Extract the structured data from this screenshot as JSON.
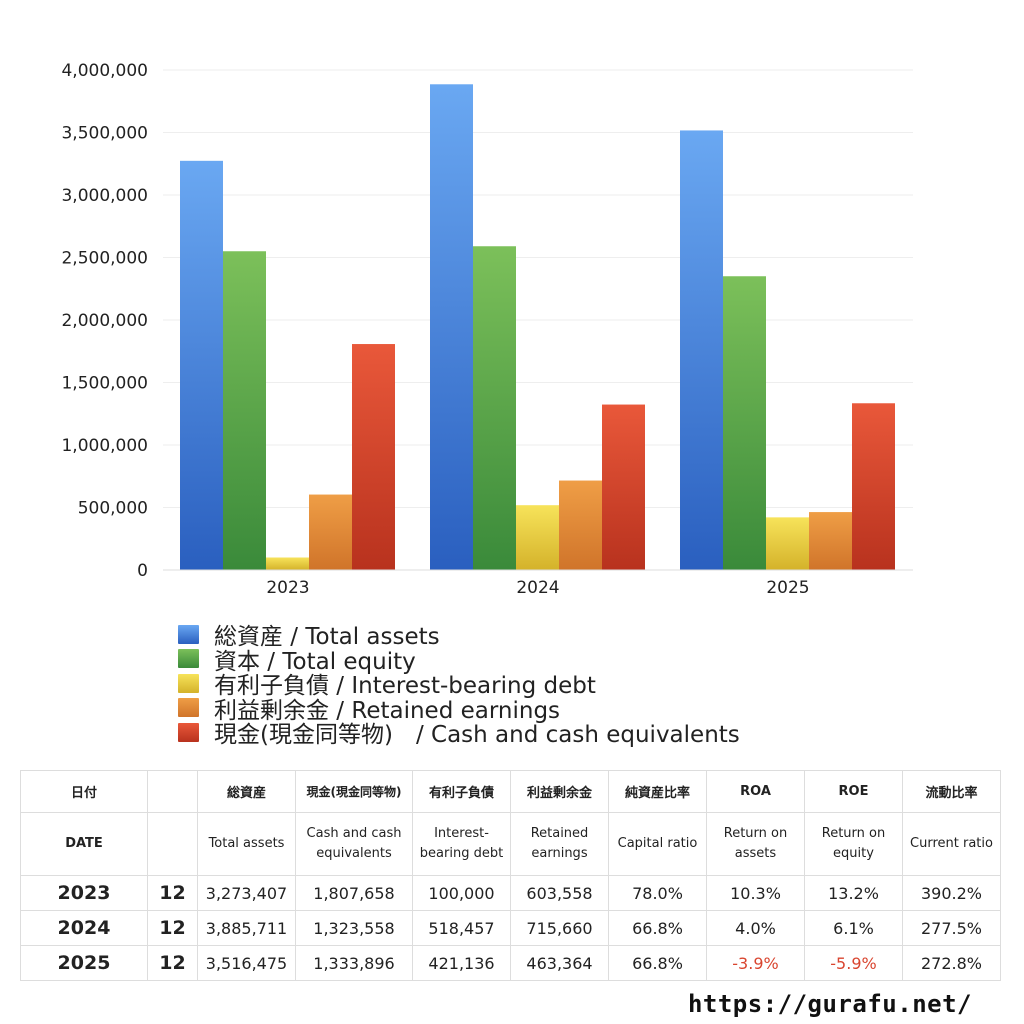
{
  "chart_data": {
    "type": "bar",
    "categories": [
      "2023",
      "2024",
      "2025"
    ],
    "ylim": [
      0,
      4000000
    ],
    "yticks": [
      0,
      500000,
      1000000,
      1500000,
      2000000,
      2500000,
      3000000,
      3500000,
      4000000
    ],
    "ytick_labels": [
      "0",
      "500,000",
      "1,000,000",
      "1,500,000",
      "2,000,000",
      "2,500,000",
      "3,000,000",
      "3,500,000",
      "4,000,000"
    ],
    "grid": true,
    "legend_position": "bottom",
    "series": [
      {
        "name": "総資産 / Total assets",
        "values": [
          3273407,
          3885711,
          3516475
        ],
        "color": "#4a8ee6",
        "color_light": "#6aa8f2",
        "color_dark": "#2a5fbf"
      },
      {
        "name": "資本 / Total equity",
        "values": [
          2550000,
          2590000,
          2350000
        ],
        "color": "#5aa84a",
        "color_light": "#7cc05a",
        "color_dark": "#3a8a3a"
      },
      {
        "name": "有利子負債 / Interest-bearing debt",
        "values": [
          100000,
          518457,
          421136
        ],
        "color": "#f0d040",
        "color_light": "#f7e35a",
        "color_dark": "#d4b22a"
      },
      {
        "name": "利益剰余金 / Retained earnings",
        "values": [
          603558,
          715660,
          463364
        ],
        "color": "#e8903a",
        "color_light": "#ef9e46",
        "color_dark": "#d0742a"
      },
      {
        "name": "現金(現金同等物)　/  Cash and cash equivalents",
        "values": [
          1807658,
          1323558,
          1333896
        ],
        "color": "#d8452a",
        "color_light": "#e9583a",
        "color_dark": "#b8321e"
      }
    ]
  },
  "table": {
    "header_jp": [
      "日付",
      "",
      "総資産",
      "現金(現金同等物)",
      "有利子負債",
      "利益剰余金",
      "純資産比率",
      "ROA",
      "ROE",
      "流動比率"
    ],
    "header_en": [
      "DATE",
      "",
      "Total assets",
      "Cash and cash equivalents",
      "Interest-bearing debt",
      "Retained earnings",
      "Capital ratio",
      "Return on assets",
      "Return on equity",
      "Current ratio"
    ],
    "rows": [
      {
        "year": "2023",
        "month": "12",
        "total_assets": "3,273,407",
        "cash": "1,807,658",
        "debt": "100,000",
        "retained": "603,558",
        "capital_ratio": "78.0%",
        "roa": "10.3%",
        "roe": "13.2%",
        "current_ratio": "390.2%"
      },
      {
        "year": "2024",
        "month": "12",
        "total_assets": "3,885,711",
        "cash": "1,323,558",
        "debt": "518,457",
        "retained": "715,660",
        "capital_ratio": "66.8%",
        "roa": "4.0%",
        "roe": "6.1%",
        "current_ratio": "277.5%"
      },
      {
        "year": "2025",
        "month": "12",
        "total_assets": "3,516,475",
        "cash": "1,333,896",
        "debt": "421,136",
        "retained": "463,364",
        "capital_ratio": "66.8%",
        "roa": "-3.9%",
        "roe": "-5.9%",
        "current_ratio": "272.8%"
      }
    ]
  },
  "site_url": "https://gurafu.net/"
}
